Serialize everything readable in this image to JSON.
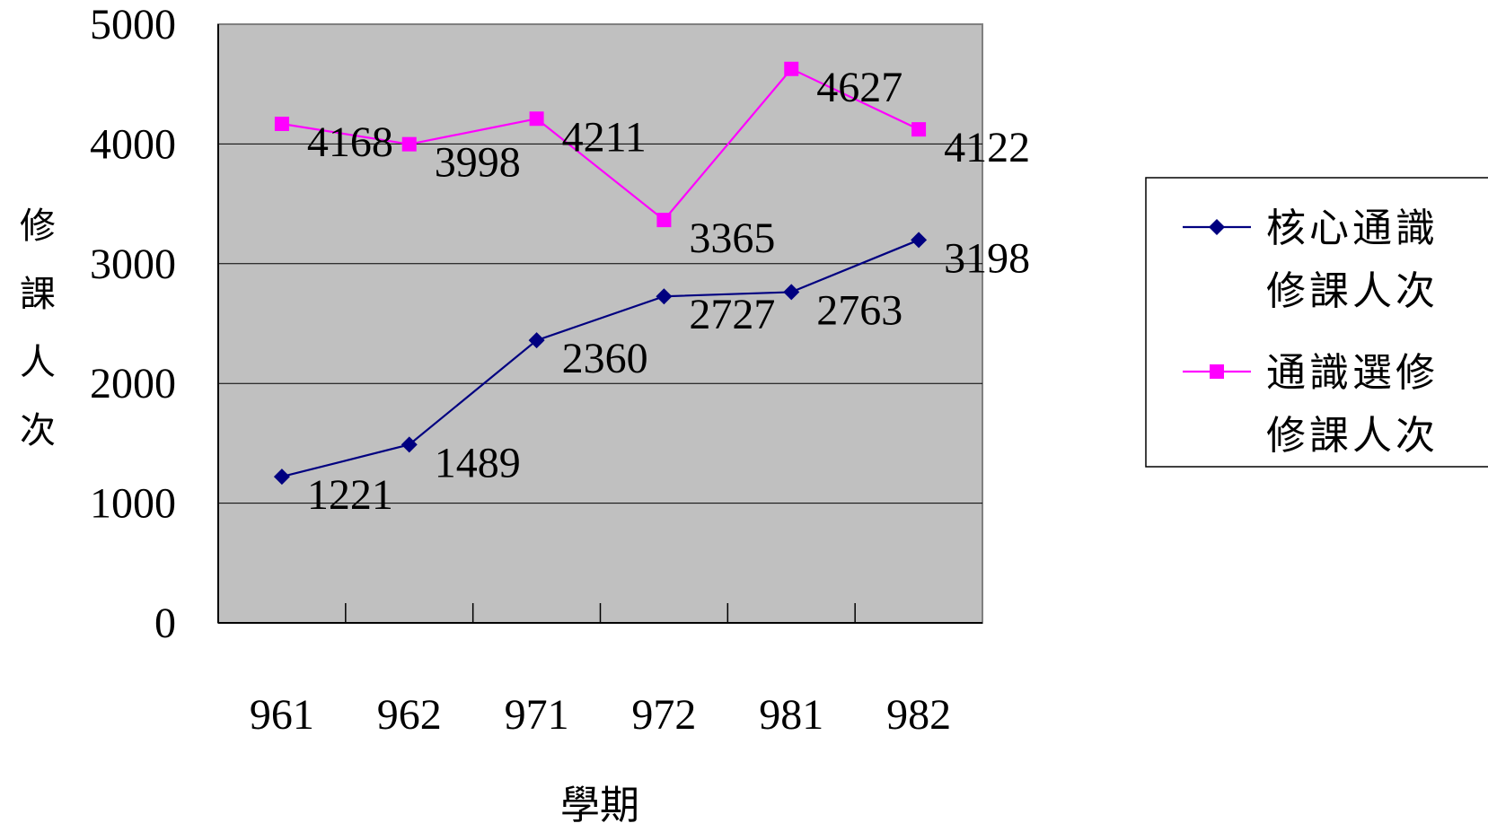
{
  "chart_data": {
    "type": "line",
    "title": "",
    "xlabel": "學期",
    "ylabel": "修課人次",
    "categories": [
      "961",
      "962",
      "971",
      "972",
      "981",
      "982"
    ],
    "ylim": [
      0,
      5000
    ],
    "yticks": [
      0,
      1000,
      2000,
      3000,
      4000,
      5000
    ],
    "grid": true,
    "legend_position": "right",
    "plot_background": "#c0c0c0",
    "series": [
      {
        "name": "核心通識修課人次",
        "legend_lines": [
          "核心通識",
          "修課人次"
        ],
        "color": "#000080",
        "marker": "diamond",
        "values": [
          1221,
          1489,
          2360,
          2727,
          2763,
          3198
        ]
      },
      {
        "name": "通識選修修課人次",
        "legend_lines": [
          "通識選修",
          "修課人次"
        ],
        "color": "#ff00ff",
        "marker": "square",
        "values": [
          4168,
          3998,
          4211,
          3365,
          4627,
          4122
        ]
      }
    ]
  }
}
